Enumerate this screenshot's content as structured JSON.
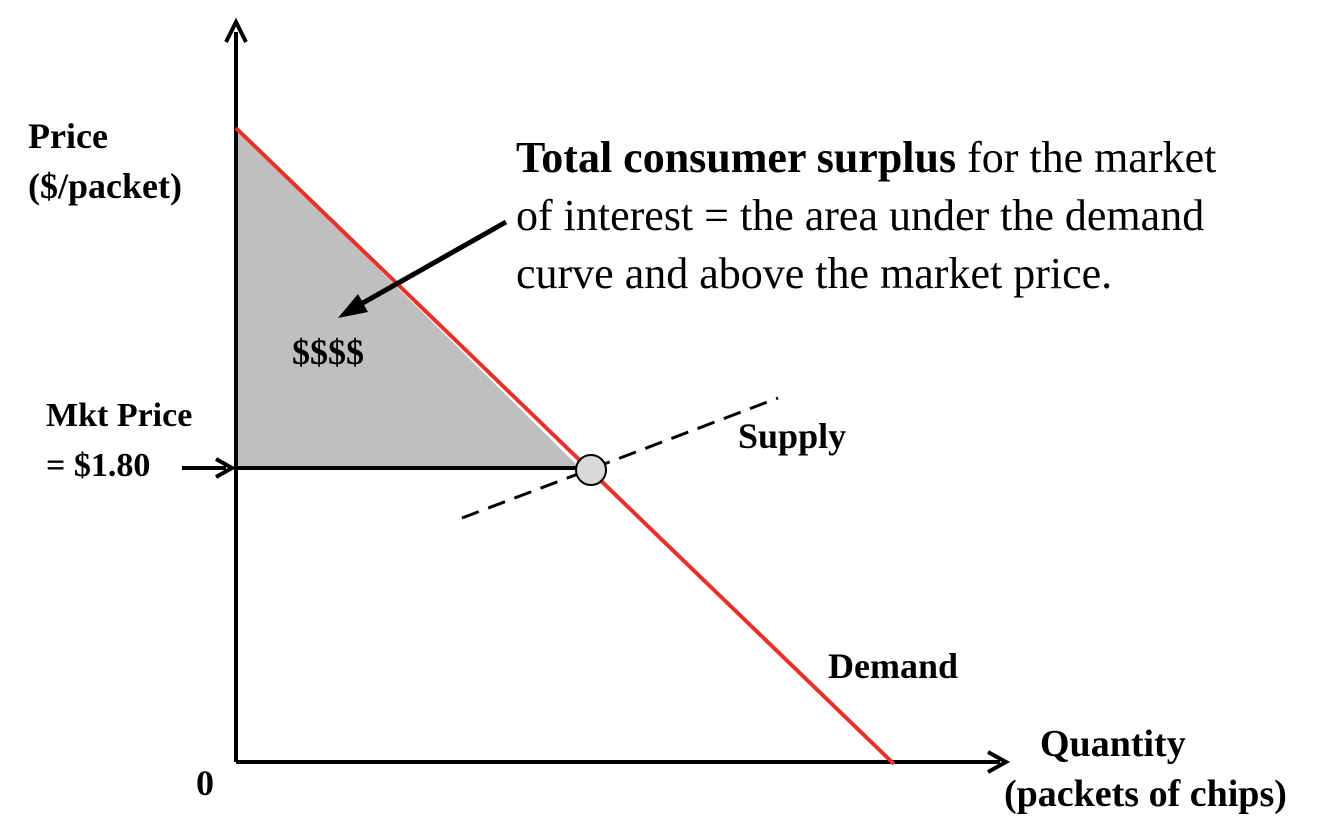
{
  "axes": {
    "y_label_line1": "Price",
    "y_label_line2": "($/packet)",
    "x_label_line1": "Quantity",
    "x_label_line2": "(packets of chips)",
    "origin_label": "0"
  },
  "market_price": {
    "line1": "Mkt Price",
    "line2": "= $1.80",
    "value": 1.8
  },
  "curves": {
    "supply_label": "Supply",
    "demand_label": "Demand",
    "demand_color": "#e8312a",
    "supply_style": "dashed"
  },
  "surplus": {
    "area_label": "$$$$",
    "fill_color": "#bfbfbf"
  },
  "annotation": {
    "bold_part": "Total consumer surplus",
    "rest_line1": " for the market",
    "line2": "of interest = the area under the demand",
    "line3": "curve and above the market price."
  },
  "colors": {
    "axis": "#000000",
    "equilibrium_point_fill": "#d9d9d9"
  }
}
